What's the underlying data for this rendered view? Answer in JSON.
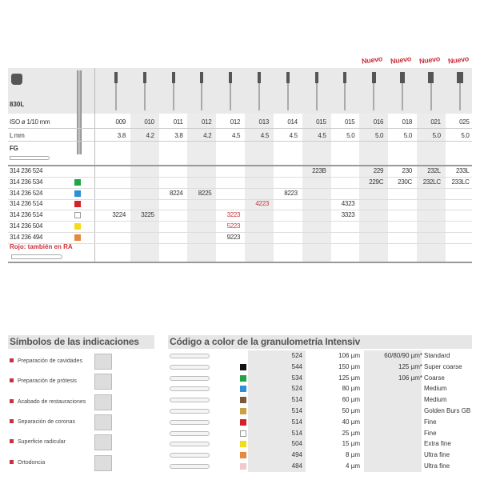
{
  "product": {
    "name": "830L",
    "new_label": "Nuevo",
    "new_columns": [
      9,
      10,
      11,
      12
    ]
  },
  "header_rows": {
    "iso_label": "ISO ø 1/10 mm",
    "l_label": "L mm",
    "fg_label": "FG"
  },
  "columns": [
    {
      "iso": "009",
      "l": "3.8"
    },
    {
      "iso": "010",
      "l": "4.2"
    },
    {
      "iso": "011",
      "l": "3.8"
    },
    {
      "iso": "012",
      "l": "4.2"
    },
    {
      "iso": "012",
      "l": "4.5"
    },
    {
      "iso": "013",
      "l": "4.5"
    },
    {
      "iso": "014",
      "l": "4.5"
    },
    {
      "iso": "015",
      "l": "4.5"
    },
    {
      "iso": "015",
      "l": "5.0"
    },
    {
      "iso": "016",
      "l": "5.0"
    },
    {
      "iso": "018",
      "l": "5.0"
    },
    {
      "iso": "021",
      "l": "5.0"
    },
    {
      "iso": "025",
      "l": "5.0"
    }
  ],
  "rows": [
    {
      "ref": "314 236 524",
      "color": "",
      "cells": {
        "7": "223B",
        "9": "229",
        "10": "230",
        "11": "232L",
        "12": "233L"
      }
    },
    {
      "ref": "314 236 534",
      "color": "#1fa544",
      "cells": {
        "9": "229C",
        "10": "230C",
        "11": "232LC",
        "12": "233LC"
      }
    },
    {
      "ref": "314 236 524",
      "color": "#2f8fd8",
      "cells": {
        "2": "8224",
        "3": "8225",
        "6": "8223"
      }
    },
    {
      "ref": "314 236 514",
      "color": "#d8202a",
      "cells": {
        "5": "4223",
        "8": "4323"
      },
      "red": [
        "5"
      ]
    },
    {
      "ref": "314 236 514",
      "color": "#ffffff",
      "cells": {
        "0": "3224",
        "1": "3225",
        "4": "3223",
        "8": "3323"
      },
      "red": [
        "4"
      ]
    },
    {
      "ref": "314 236 504",
      "color": "#f3dc1a",
      "cells": {
        "4": "5223"
      },
      "red": [
        "4"
      ]
    },
    {
      "ref": "314 236 494",
      "color": "#e4893f",
      "cells": {
        "4": "9223"
      }
    }
  ],
  "note": "Rojo: también en RA",
  "indications": {
    "title": "Símbolos de las indicaciones",
    "items": [
      "Preparación de cavidades",
      "Preparación de prótesis",
      "Acabado de restauraciones",
      "Separación de coronas",
      "Superficie radicular",
      "Ortodoncia"
    ]
  },
  "grit": {
    "title": "Código a color de la granulometría Intensiv",
    "rows": [
      {
        "color": "",
        "code": "524",
        "size": "106 µm",
        "alt": "60/80/90 µm*",
        "desc": "Standard"
      },
      {
        "color": "#111111",
        "code": "544",
        "size": "150 µm",
        "alt": "125 µm*",
        "desc": "Super coarse"
      },
      {
        "color": "#1fa544",
        "code": "534",
        "size": "125 µm",
        "alt": "106 µm*",
        "desc": "Coarse"
      },
      {
        "color": "#2f8fd8",
        "code": "524",
        "size": "80 µm",
        "alt": "",
        "desc": "Medium"
      },
      {
        "color": "#7a5a3a",
        "code": "514",
        "size": "60 µm",
        "alt": "",
        "desc": "Medium"
      },
      {
        "color": "#c9a043",
        "code": "514",
        "size": "50 µm",
        "alt": "",
        "desc": "Golden Burs GB"
      },
      {
        "color": "#d8202a",
        "code": "514",
        "size": "40 µm",
        "alt": "",
        "desc": "Fine"
      },
      {
        "color": "#ffffff",
        "code": "514",
        "size": "25 µm",
        "alt": "",
        "desc": "Fine"
      },
      {
        "color": "#f3dc1a",
        "code": "504",
        "size": "15 µm",
        "alt": "",
        "desc": "Extra fine"
      },
      {
        "color": "#e4893f",
        "code": "494",
        "size": "8 µm",
        "alt": "",
        "desc": "Ultra fine"
      },
      {
        "color": "#f4c6cf",
        "code": "484",
        "size": "4 µm",
        "alt": "",
        "desc": "Ultra fine"
      }
    ]
  }
}
